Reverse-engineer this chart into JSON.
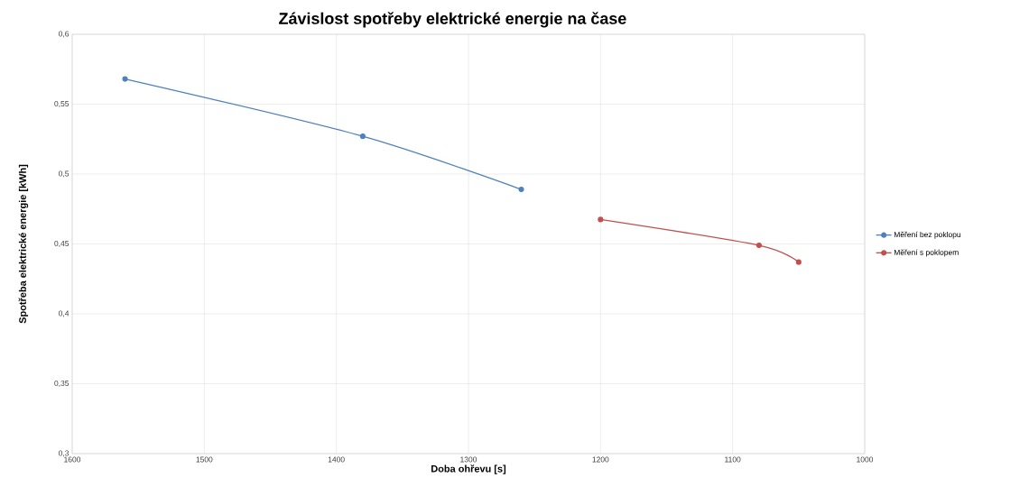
{
  "chart_data": {
    "type": "line",
    "title": "Závislost spotřeby elektrické energie na čase",
    "xlabel": "Doba ohřevu [s]",
    "ylabel": "Spotřeba elektrické energie [kWh]",
    "series": [
      {
        "name": "Měření bez poklopu",
        "color": "#4f81bd",
        "x": [
          1560,
          1380,
          1260
        ],
        "values": [
          0.568,
          0.527,
          0.489
        ]
      },
      {
        "name": "Měření s poklopem",
        "color": "#c0504d",
        "x": [
          1200,
          1080,
          1050
        ],
        "values": [
          0.4675,
          0.449,
          0.437
        ]
      }
    ],
    "xlim": [
      1600,
      1000
    ],
    "xticks": [
      1600,
      1500,
      1400,
      1300,
      1200,
      1100,
      1000
    ],
    "ylim": [
      0.3,
      0.6
    ],
    "yticks": [
      {
        "value": 0.3,
        "label": "0,3"
      },
      {
        "value": 0.35,
        "label": "0,35"
      },
      {
        "value": 0.4,
        "label": "0,4"
      },
      {
        "value": 0.45,
        "label": "0,45"
      },
      {
        "value": 0.5,
        "label": "0,5"
      },
      {
        "value": 0.55,
        "label": "0,55"
      },
      {
        "value": 0.6,
        "label": "0,6"
      }
    ],
    "grid": true,
    "legend": "right",
    "marker": "circle",
    "line_style": "solid"
  }
}
